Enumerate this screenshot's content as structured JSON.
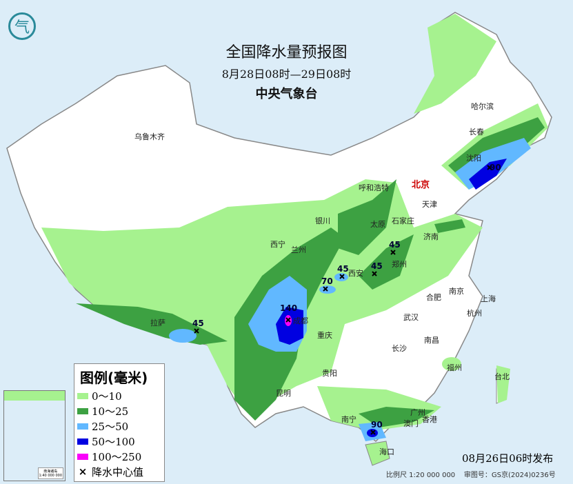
{
  "header": {
    "title": "全国降水量预报图",
    "period": "8月28日08时—29日08时",
    "issuer": "中央气象台"
  },
  "colors": {
    "sea": "#dcedf8",
    "land": "#ffffff",
    "r0_10": "#a6f28f",
    "r10_25": "#3da142",
    "r25_50": "#61b8ff",
    "r50_100": "#0000e1",
    "r100_250": "#fa00fa"
  },
  "legend": {
    "title": "图例(毫米)",
    "items": [
      {
        "label": "0～10",
        "color": "#a6f28f"
      },
      {
        "label": "10～25",
        "color": "#3da142"
      },
      {
        "label": "25～50",
        "color": "#61b8ff"
      },
      {
        "label": "50～100",
        "color": "#0000e1"
      },
      {
        "label": "100～250",
        "color": "#fa00fa"
      }
    ],
    "center_label": "降水中心值",
    "center_symbol": "×"
  },
  "cities": [
    "乌鲁木齐",
    "哈尔滨",
    "长春",
    "沈阳",
    "北京",
    "天津",
    "呼和浩特",
    "银川",
    "太原",
    "石家庄",
    "济南",
    "西宁",
    "兰州",
    "西安",
    "郑州",
    "合肥",
    "南京",
    "上海",
    "杭州",
    "武汉",
    "拉萨",
    "成都",
    "重庆",
    "长沙",
    "南昌",
    "贵阳",
    "昆明",
    "福州",
    "台北",
    "南宁",
    "广州",
    "澳门",
    "香港",
    "海口"
  ],
  "rain_centers": [
    "90",
    "45",
    "45",
    "45",
    "70",
    "140",
    "45",
    "90"
  ],
  "inset": {
    "label": "南海诸岛",
    "scale": "1:40 000 000"
  },
  "footer": {
    "issued": "08月26日06时发布",
    "scale": "比例尺 1:20 000 000",
    "approval": "审图号：GS京(2024)0236号"
  }
}
